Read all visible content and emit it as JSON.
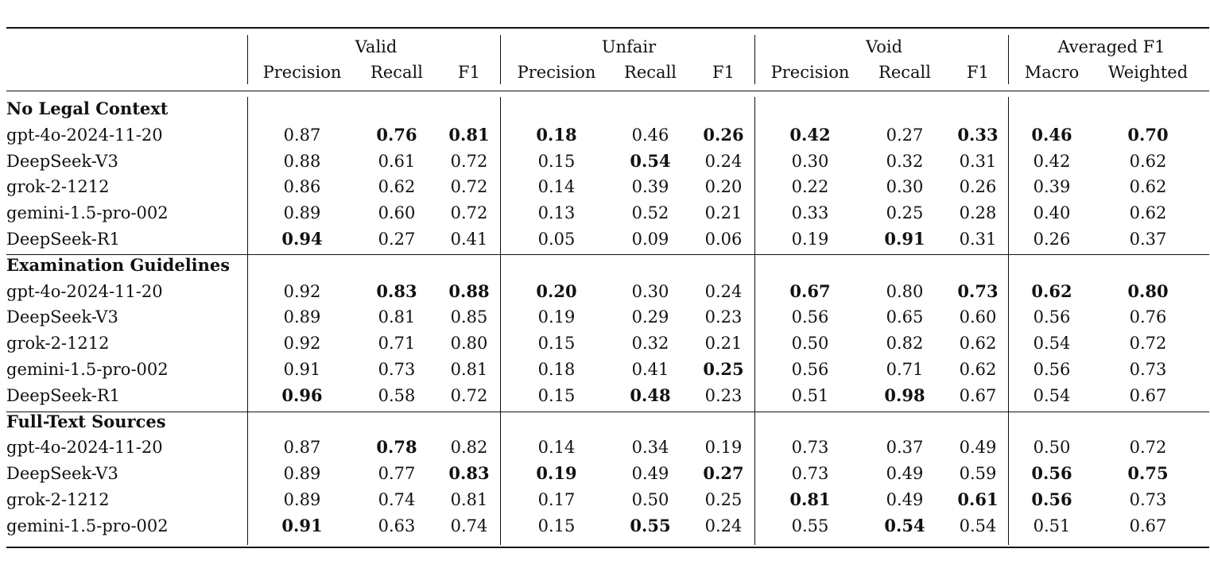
{
  "table": {
    "group_headers": [
      "Valid",
      "Unfair",
      "Void",
      "Averaged F1"
    ],
    "column_headers": [
      "Precision",
      "Recall",
      "F1",
      "Precision",
      "Recall",
      "F1",
      "Precision",
      "Recall",
      "F1",
      "Macro",
      "Weighted"
    ],
    "sections": [
      {
        "title": "No Legal Context",
        "rows": [
          {
            "model": "gpt-4o-2024-11-20",
            "values": [
              "0.87",
              "0.76",
              "0.81",
              "0.18",
              "0.46",
              "0.26",
              "0.42",
              "0.27",
              "0.33",
              "0.46",
              "0.70"
            ],
            "bold": [
              false,
              true,
              true,
              true,
              false,
              true,
              true,
              false,
              true,
              true,
              true
            ]
          },
          {
            "model": "DeepSeek-V3",
            "values": [
              "0.88",
              "0.61",
              "0.72",
              "0.15",
              "0.54",
              "0.24",
              "0.30",
              "0.32",
              "0.31",
              "0.42",
              "0.62"
            ],
            "bold": [
              false,
              false,
              false,
              false,
              true,
              false,
              false,
              false,
              false,
              false,
              false
            ]
          },
          {
            "model": "grok-2-1212",
            "values": [
              "0.86",
              "0.62",
              "0.72",
              "0.14",
              "0.39",
              "0.20",
              "0.22",
              "0.30",
              "0.26",
              "0.39",
              "0.62"
            ],
            "bold": [
              false,
              false,
              false,
              false,
              false,
              false,
              false,
              false,
              false,
              false,
              false
            ]
          },
          {
            "model": "gemini-1.5-pro-002",
            "values": [
              "0.89",
              "0.60",
              "0.72",
              "0.13",
              "0.52",
              "0.21",
              "0.33",
              "0.25",
              "0.28",
              "0.40",
              "0.62"
            ],
            "bold": [
              false,
              false,
              false,
              false,
              false,
              false,
              false,
              false,
              false,
              false,
              false
            ]
          },
          {
            "model": "DeepSeek-R1",
            "values": [
              "0.94",
              "0.27",
              "0.41",
              "0.05",
              "0.09",
              "0.06",
              "0.19",
              "0.91",
              "0.31",
              "0.26",
              "0.37"
            ],
            "bold": [
              true,
              false,
              false,
              false,
              false,
              false,
              false,
              true,
              false,
              false,
              false
            ]
          }
        ]
      },
      {
        "title": "Examination Guidelines",
        "rows": [
          {
            "model": "gpt-4o-2024-11-20",
            "values": [
              "0.92",
              "0.83",
              "0.88",
              "0.20",
              "0.30",
              "0.24",
              "0.67",
              "0.80",
              "0.73",
              "0.62",
              "0.80"
            ],
            "bold": [
              false,
              true,
              true,
              true,
              false,
              false,
              true,
              false,
              true,
              true,
              true
            ]
          },
          {
            "model": "DeepSeek-V3",
            "values": [
              "0.89",
              "0.81",
              "0.85",
              "0.19",
              "0.29",
              "0.23",
              "0.56",
              "0.65",
              "0.60",
              "0.56",
              "0.76"
            ],
            "bold": [
              false,
              false,
              false,
              false,
              false,
              false,
              false,
              false,
              false,
              false,
              false
            ]
          },
          {
            "model": "grok-2-1212",
            "values": [
              "0.92",
              "0.71",
              "0.80",
              "0.15",
              "0.32",
              "0.21",
              "0.50",
              "0.82",
              "0.62",
              "0.54",
              "0.72"
            ],
            "bold": [
              false,
              false,
              false,
              false,
              false,
              false,
              false,
              false,
              false,
              false,
              false
            ]
          },
          {
            "model": "gemini-1.5-pro-002",
            "values": [
              "0.91",
              "0.73",
              "0.81",
              "0.18",
              "0.41",
              "0.25",
              "0.56",
              "0.71",
              "0.62",
              "0.56",
              "0.73"
            ],
            "bold": [
              false,
              false,
              false,
              false,
              false,
              true,
              false,
              false,
              false,
              false,
              false
            ]
          },
          {
            "model": "DeepSeek-R1",
            "values": [
              "0.96",
              "0.58",
              "0.72",
              "0.15",
              "0.48",
              "0.23",
              "0.51",
              "0.98",
              "0.67",
              "0.54",
              "0.67"
            ],
            "bold": [
              true,
              false,
              false,
              false,
              true,
              false,
              false,
              true,
              false,
              false,
              false
            ]
          }
        ]
      },
      {
        "title": "Full-Text Sources",
        "rows": [
          {
            "model": "gpt-4o-2024-11-20",
            "values": [
              "0.87",
              "0.78",
              "0.82",
              "0.14",
              "0.34",
              "0.19",
              "0.73",
              "0.37",
              "0.49",
              "0.50",
              "0.72"
            ],
            "bold": [
              false,
              true,
              false,
              false,
              false,
              false,
              false,
              false,
              false,
              false,
              false
            ]
          },
          {
            "model": "DeepSeek-V3",
            "values": [
              "0.89",
              "0.77",
              "0.83",
              "0.19",
              "0.49",
              "0.27",
              "0.73",
              "0.49",
              "0.59",
              "0.56",
              "0.75"
            ],
            "bold": [
              false,
              false,
              true,
              true,
              false,
              true,
              false,
              false,
              false,
              true,
              true
            ]
          },
          {
            "model": "grok-2-1212",
            "values": [
              "0.89",
              "0.74",
              "0.81",
              "0.17",
              "0.50",
              "0.25",
              "0.81",
              "0.49",
              "0.61",
              "0.56",
              "0.73"
            ],
            "bold": [
              false,
              false,
              false,
              false,
              false,
              false,
              true,
              false,
              true,
              true,
              false
            ]
          },
          {
            "model": "gemini-1.5-pro-002",
            "values": [
              "0.91",
              "0.63",
              "0.74",
              "0.15",
              "0.55",
              "0.24",
              "0.55",
              "0.54",
              "0.54",
              "0.51",
              "0.67"
            ],
            "bold": [
              true,
              false,
              false,
              false,
              true,
              false,
              false,
              true,
              false,
              false,
              false
            ]
          }
        ]
      }
    ]
  }
}
